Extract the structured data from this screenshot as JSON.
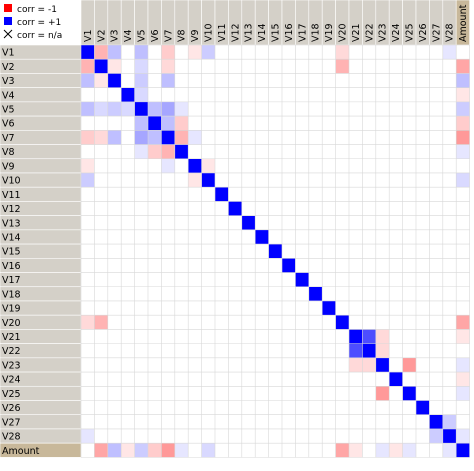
{
  "legend": {
    "items": [
      {
        "label": "corr = -1",
        "swatch": "#ff0000"
      },
      {
        "label": "corr = +1",
        "swatch": "#0000ff"
      },
      {
        "label": "corr = n/a",
        "swatch": "cross"
      }
    ]
  },
  "colors": {
    "negative": "#ff0000",
    "positive": "#0000ff",
    "header_bg": "#d4d0c8",
    "highlight_bg": "#c8b89a",
    "grid": "#d8d8d8"
  },
  "chart_data": {
    "type": "heatmap",
    "title": "",
    "variables": [
      "V1",
      "V2",
      "V3",
      "V4",
      "V5",
      "V6",
      "V7",
      "V8",
      "V9",
      "V10",
      "V11",
      "V12",
      "V13",
      "V14",
      "V15",
      "V16",
      "V17",
      "V18",
      "V19",
      "V20",
      "V21",
      "V22",
      "V23",
      "V24",
      "V25",
      "V26",
      "V27",
      "V28",
      "Amount"
    ],
    "highlighted": "Amount",
    "color_scale": {
      "min": -1,
      "max": 1,
      "min_color": "#ff0000",
      "mid_color": "#ffffff",
      "max_color": "#0000ff"
    },
    "correlations": [
      {
        "a": "V1",
        "b": "V2",
        "value": -0.3
      },
      {
        "a": "V1",
        "b": "V3",
        "value": 0.25
      },
      {
        "a": "V1",
        "b": "V5",
        "value": 0.25
      },
      {
        "a": "V1",
        "b": "V7",
        "value": -0.2
      },
      {
        "a": "V1",
        "b": "V9",
        "value": -0.1
      },
      {
        "a": "V1",
        "b": "V10",
        "value": 0.2
      },
      {
        "a": "V1",
        "b": "V20",
        "value": -0.15
      },
      {
        "a": "V1",
        "b": "V28",
        "value": 0.1
      },
      {
        "a": "V2",
        "b": "V3",
        "value": -0.1
      },
      {
        "a": "V2",
        "b": "V5",
        "value": 0.15
      },
      {
        "a": "V2",
        "b": "V7",
        "value": -0.15
      },
      {
        "a": "V2",
        "b": "V20",
        "value": -0.3
      },
      {
        "a": "V2",
        "b": "Amount",
        "value": -0.35
      },
      {
        "a": "V3",
        "b": "V5",
        "value": 0.2
      },
      {
        "a": "V3",
        "b": "V7",
        "value": 0.25
      },
      {
        "a": "V3",
        "b": "Amount",
        "value": 0.25
      },
      {
        "a": "V4",
        "b": "V5",
        "value": 0.15
      },
      {
        "a": "V4",
        "b": "Amount",
        "value": -0.1
      },
      {
        "a": "V5",
        "b": "V6",
        "value": 0.25
      },
      {
        "a": "V5",
        "b": "V7",
        "value": 0.35
      },
      {
        "a": "V5",
        "b": "V8",
        "value": 0.1
      },
      {
        "a": "V5",
        "b": "Amount",
        "value": 0.2
      },
      {
        "a": "V6",
        "b": "V7",
        "value": 0.25
      },
      {
        "a": "V6",
        "b": "V8",
        "value": -0.2
      },
      {
        "a": "V6",
        "b": "Amount",
        "value": -0.2
      },
      {
        "a": "V7",
        "b": "V8",
        "value": -0.3
      },
      {
        "a": "V7",
        "b": "V9",
        "value": 0.1
      },
      {
        "a": "V7",
        "b": "Amount",
        "value": -0.4
      },
      {
        "a": "V8",
        "b": "Amount",
        "value": 0.1
      },
      {
        "a": "V9",
        "b": "V10",
        "value": -0.1
      },
      {
        "a": "V10",
        "b": "Amount",
        "value": 0.15
      },
      {
        "a": "V20",
        "b": "Amount",
        "value": -0.35
      },
      {
        "a": "V21",
        "b": "V22",
        "value": 0.7
      },
      {
        "a": "V21",
        "b": "V23",
        "value": -0.15
      },
      {
        "a": "V21",
        "b": "Amount",
        "value": -0.1
      },
      {
        "a": "V22",
        "b": "V23",
        "value": -0.15
      },
      {
        "a": "V23",
        "b": "V25",
        "value": -0.4
      },
      {
        "a": "V23",
        "b": "Amount",
        "value": 0.1
      },
      {
        "a": "V24",
        "b": "Amount",
        "value": -0.1
      },
      {
        "a": "V25",
        "b": "Amount",
        "value": 0.1
      },
      {
        "a": "V27",
        "b": "V28",
        "value": 0.2
      },
      {
        "a": "V28",
        "b": "Amount",
        "value": 0.1
      }
    ]
  }
}
